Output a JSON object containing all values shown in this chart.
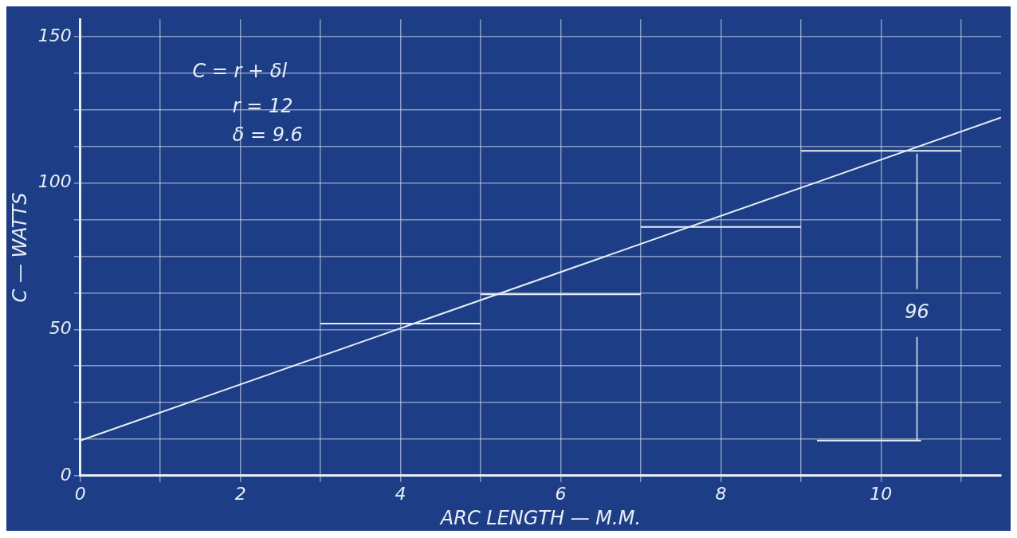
{
  "chart_data": {
    "type": "line",
    "xlabel": "ARC LENGTH — M.M.",
    "ylabel": "C — WATTS",
    "annotations": [
      "C = r + δl",
      "r = 12",
      "δ = 9.6",
      {
        "text": "96",
        "x": 10.45,
        "y": 12
      }
    ],
    "xlim": [
      0,
      11.5
    ],
    "ylim": [
      0,
      156
    ],
    "xticks": [
      0,
      {
        "value": 1,
        "label": null
      },
      2,
      {
        "value": 3,
        "label": null
      },
      4,
      {
        "value": 5,
        "label": null
      },
      6,
      {
        "value": 7,
        "label": null
      },
      8,
      {
        "value": 9,
        "label": null
      },
      10,
      {
        "value": 11,
        "label": null
      }
    ],
    "yticks": [
      0,
      {
        "value": 12.5,
        "label": null
      },
      {
        "value": 25,
        "label": null
      },
      {
        "value": 37.5,
        "label": null
      },
      50,
      {
        "value": 62.5,
        "label": null
      },
      {
        "value": 75,
        "label": null
      },
      {
        "value": 87.5,
        "label": null
      },
      100,
      {
        "value": 112.5,
        "label": null
      },
      {
        "value": 125,
        "label": null
      },
      {
        "value": 137.5,
        "label": null
      },
      150
    ],
    "grid": true,
    "legend": false,
    "marker": "none",
    "line_style": "solid",
    "series": [
      {
        "color": "#e8eef5",
        "x": [
          0,
          11.5
        ],
        "values": [
          12,
          122.4
        ]
      },
      {
        "color": "#e8eef5",
        "x": [
          3,
          5
        ],
        "values": [
          52,
          52
        ]
      },
      {
        "color": "#e8eef5",
        "x": [
          5,
          7
        ],
        "values": [
          62,
          62
        ]
      },
      {
        "color": "#e8eef5",
        "x": [
          7,
          9
        ],
        "values": [
          85,
          85
        ]
      },
      {
        "color": "#e8eef5",
        "x": [
          9,
          11
        ],
        "values": [
          111,
          111
        ]
      },
      {
        "color": "#e8eef5",
        "x": [
          9.2,
          10.5
        ],
        "values": [
          12,
          12
        ]
      }
    ]
  }
}
